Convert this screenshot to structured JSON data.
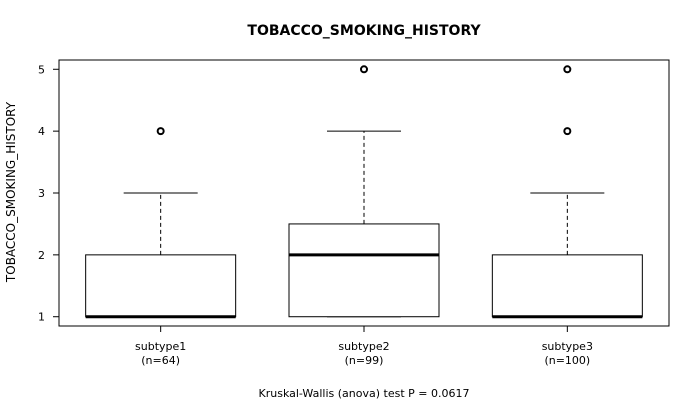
{
  "chart_data": {
    "type": "box",
    "title": "TOBACCO_SMOKING_HISTORY",
    "ylabel": "TOBACCO_SMOKING_HISTORY",
    "xlabel": "",
    "footnote": "Kruskal-Wallis (anova) test P = 0.0617",
    "ylim": [
      0.85,
      5.15
    ],
    "yticks": [
      1,
      2,
      3,
      4,
      5
    ],
    "grid": false,
    "legend": "none",
    "groups": [
      {
        "label": "subtype1",
        "n_label": "(n=64)",
        "min": 1,
        "q1": 1,
        "median": 1,
        "q3": 2,
        "max": 3,
        "outliers": [
          4
        ]
      },
      {
        "label": "subtype2",
        "n_label": "(n=99)",
        "min": 1,
        "q1": 1,
        "median": 2,
        "q3": 2.5,
        "max": 4,
        "outliers": [
          5
        ]
      },
      {
        "label": "subtype3",
        "n_label": "(n=100)",
        "min": 1,
        "q1": 1,
        "median": 1,
        "q3": 2,
        "max": 3,
        "outliers": [
          4,
          5
        ]
      }
    ]
  }
}
